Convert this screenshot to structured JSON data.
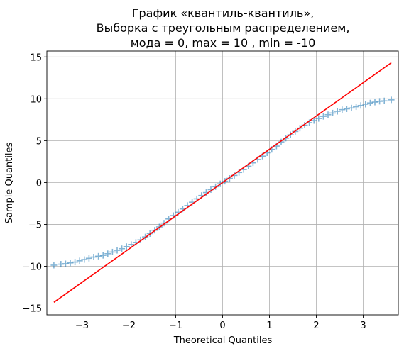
{
  "chart_data": {
    "type": "scatter",
    "title": [
      "График «квантиль-квантиль»,",
      "Выборка с треугольным распределением,",
      "мода = 0, max = 10 , min = -10"
    ],
    "xlabel": "Theoretical Quantiles",
    "ylabel": "Sample Quantiles",
    "xlim": [
      -3.75,
      3.75
    ],
    "ylim": [
      -15.8,
      15.7
    ],
    "xticks": [
      -3,
      -2,
      -1,
      0,
      1,
      2,
      3
    ],
    "xtick_labels": [
      "−3",
      "−2",
      "−1",
      "0",
      "1",
      "2",
      "3"
    ],
    "yticks": [
      -15,
      -10,
      -5,
      0,
      5,
      10,
      15
    ],
    "ytick_labels": [
      "−15",
      "−10",
      "−5",
      "0",
      "5",
      "10",
      "15"
    ],
    "grid": true,
    "series": [
      {
        "kind": "markers",
        "marker": "+",
        "color": "#1f77b4",
        "points": [
          [
            -3.6,
            -9.87
          ],
          [
            -3.45,
            -9.75
          ],
          [
            -3.35,
            -9.7
          ],
          [
            -3.25,
            -9.6
          ],
          [
            -3.15,
            -9.5
          ],
          [
            -3.05,
            -9.35
          ],
          [
            -2.95,
            -9.2
          ],
          [
            -2.85,
            -9.05
          ],
          [
            -2.75,
            -8.9
          ],
          [
            -2.65,
            -8.8
          ],
          [
            -2.55,
            -8.7
          ],
          [
            -2.45,
            -8.5
          ],
          [
            -2.35,
            -8.3
          ],
          [
            -2.25,
            -8.1
          ],
          [
            -2.15,
            -7.9
          ],
          [
            -2.05,
            -7.65
          ],
          [
            -1.95,
            -7.4
          ],
          [
            -1.85,
            -7.15
          ],
          [
            -1.75,
            -6.85
          ],
          [
            -1.65,
            -6.5
          ],
          [
            -1.55,
            -6.1
          ],
          [
            -1.45,
            -5.7
          ],
          [
            -1.35,
            -5.3
          ],
          [
            -1.25,
            -4.85
          ],
          [
            -1.15,
            -4.35
          ],
          [
            -1.05,
            -3.95
          ],
          [
            -0.95,
            -3.55
          ],
          [
            -0.85,
            -3.15
          ],
          [
            -0.75,
            -2.75
          ],
          [
            -0.65,
            -2.35
          ],
          [
            -0.55,
            -1.95
          ],
          [
            -0.45,
            -1.55
          ],
          [
            -0.35,
            -1.2
          ],
          [
            -0.25,
            -0.85
          ],
          [
            -0.15,
            -0.5
          ],
          [
            -0.05,
            -0.15
          ],
          [
            0.05,
            0.15
          ],
          [
            0.15,
            0.5
          ],
          [
            0.25,
            0.85
          ],
          [
            0.35,
            1.2
          ],
          [
            0.45,
            1.55
          ],
          [
            0.55,
            1.95
          ],
          [
            0.65,
            2.35
          ],
          [
            0.75,
            2.75
          ],
          [
            0.85,
            3.15
          ],
          [
            0.95,
            3.55
          ],
          [
            1.05,
            3.95
          ],
          [
            1.15,
            4.35
          ],
          [
            1.25,
            4.85
          ],
          [
            1.35,
            5.3
          ],
          [
            1.45,
            5.7
          ],
          [
            1.55,
            6.1
          ],
          [
            1.65,
            6.5
          ],
          [
            1.75,
            6.85
          ],
          [
            1.85,
            7.15
          ],
          [
            1.95,
            7.4
          ],
          [
            2.05,
            7.65
          ],
          [
            2.15,
            7.9
          ],
          [
            2.25,
            8.1
          ],
          [
            2.35,
            8.3
          ],
          [
            2.45,
            8.5
          ],
          [
            2.55,
            8.7
          ],
          [
            2.65,
            8.8
          ],
          [
            2.75,
            8.9
          ],
          [
            2.85,
            9.05
          ],
          [
            2.95,
            9.2
          ],
          [
            3.05,
            9.35
          ],
          [
            3.15,
            9.5
          ],
          [
            3.25,
            9.6
          ],
          [
            3.35,
            9.7
          ],
          [
            3.45,
            9.75
          ],
          [
            3.6,
            9.87
          ]
        ]
      },
      {
        "kind": "line",
        "color": "#ff0000",
        "points": [
          [
            -3.6,
            -14.3
          ],
          [
            3.6,
            14.3
          ]
        ]
      }
    ]
  }
}
